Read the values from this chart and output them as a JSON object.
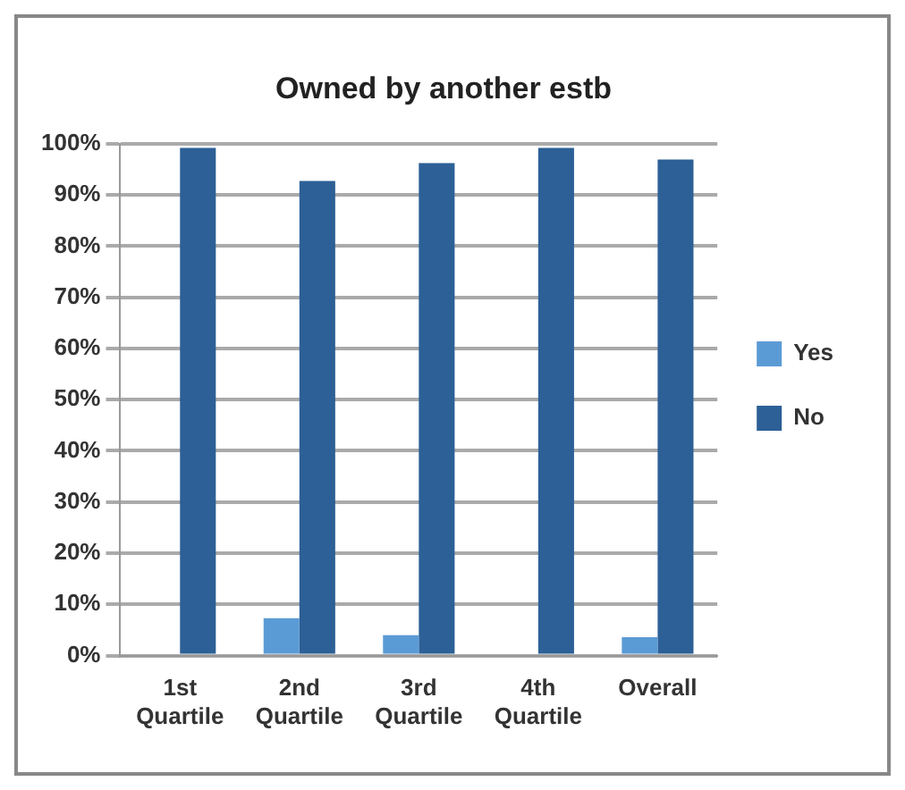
{
  "chart_data": {
    "type": "bar",
    "title": "Owned by another estb",
    "categories": [
      "1st Quartile",
      "2nd Quartile",
      "3rd Quartile",
      "4th Quartile",
      "Overall"
    ],
    "series": [
      {
        "name": "Yes",
        "color": "#5b9bd5",
        "values": [
          0,
          7.3,
          4,
          0,
          3.6
        ]
      },
      {
        "name": "No",
        "color": "#2c6096",
        "values": [
          99.2,
          92.7,
          96.2,
          99.2,
          96.9
        ]
      }
    ],
    "ylim": [
      0,
      100
    ],
    "yticks": [
      {
        "value": 0,
        "label": "0%"
      },
      {
        "value": 10,
        "label": "10%"
      },
      {
        "value": 20,
        "label": "20%"
      },
      {
        "value": 30,
        "label": "30%"
      },
      {
        "value": 40,
        "label": "40%"
      },
      {
        "value": 50,
        "label": "50%"
      },
      {
        "value": 60,
        "label": "60%"
      },
      {
        "value": 70,
        "label": "70%"
      },
      {
        "value": 80,
        "label": "80%"
      },
      {
        "value": 90,
        "label": "90%"
      },
      {
        "value": 100,
        "label": "100%"
      }
    ],
    "grid": "y",
    "legend": "right"
  }
}
